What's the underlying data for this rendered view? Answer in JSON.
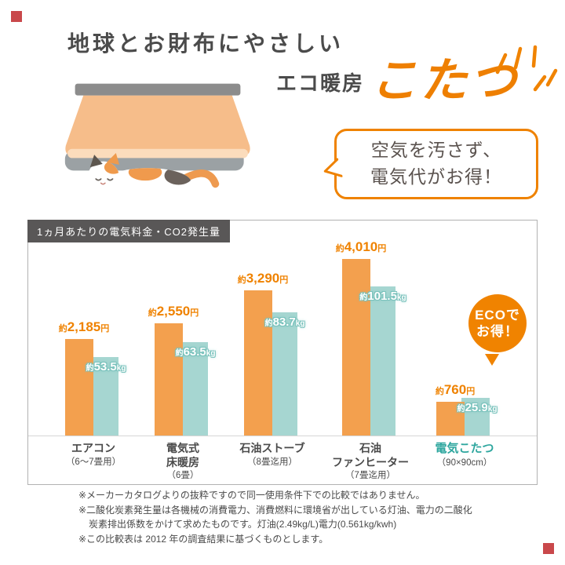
{
  "header": {
    "title": "地球とお財布にやさしい",
    "subtitle": "エコ暖房",
    "product": "こたつ"
  },
  "bubble": {
    "line1": "空気を汚さず、",
    "line2": "電気代がお得！"
  },
  "illustration": "kotatsu-table-with-sleeping-calico-cat",
  "chart": {
    "label": "1ヵ月あたりの電気料金・CO2発生量",
    "badge": {
      "line1": "ECOで",
      "line2": "お得！"
    },
    "colors": {
      "price_bar": "#f3a04e",
      "co2_bar": "#a6d6d1",
      "price_text": "#ef8200",
      "co2_text": "#ffffff",
      "highlight_text": "#2da69e",
      "accent": "#f08300",
      "corner_mark": "#c9484b"
    }
  },
  "chart_data": {
    "type": "bar",
    "title": "1ヵ月あたりの電気料金・CO2発生量",
    "legend": "none",
    "grid": false,
    "highlight_index": 4,
    "categories": [
      {
        "lines": [
          "エアコン",
          "（6～7畳用）"
        ]
      },
      {
        "lines": [
          "電気式",
          "床暖房",
          "（6畳）"
        ]
      },
      {
        "lines": [
          "石油ストーブ",
          "（8畳迄用）"
        ]
      },
      {
        "lines": [
          "石油",
          "ファンヒーター",
          "（7畳迄用）"
        ]
      },
      {
        "lines": [
          "電気こたつ",
          "（90×90cm）"
        ]
      }
    ],
    "series": [
      {
        "name": "電気料金",
        "prefix": "約",
        "unit": "円",
        "values": [
          2185,
          2550,
          3290,
          4010,
          760
        ],
        "display": [
          "2,185",
          "2,550",
          "3,290",
          "4,010",
          "760"
        ]
      },
      {
        "name": "CO2発生量",
        "prefix": "約",
        "unit": "kg",
        "values": [
          53.5,
          63.5,
          83.7,
          101.5,
          25.9
        ],
        "display": [
          "53.5",
          "63.5",
          "83.7",
          "101.5",
          "25.9"
        ]
      }
    ]
  },
  "footnotes": {
    "lines": [
      "※メーカーカタログよりの抜粋ですので同一使用条件下での比較ではありません。",
      "※二酸化炭素発生量は各機械の消費電力、消費燃料に環境省が出している灯油、電力の二酸化",
      "炭素排出係数をかけて求めたものです。灯油(2.49kg/L)電力(0.561kg/kwh)",
      "※この比較表は 2012 年の調査結果に基づくものとします。"
    ]
  }
}
